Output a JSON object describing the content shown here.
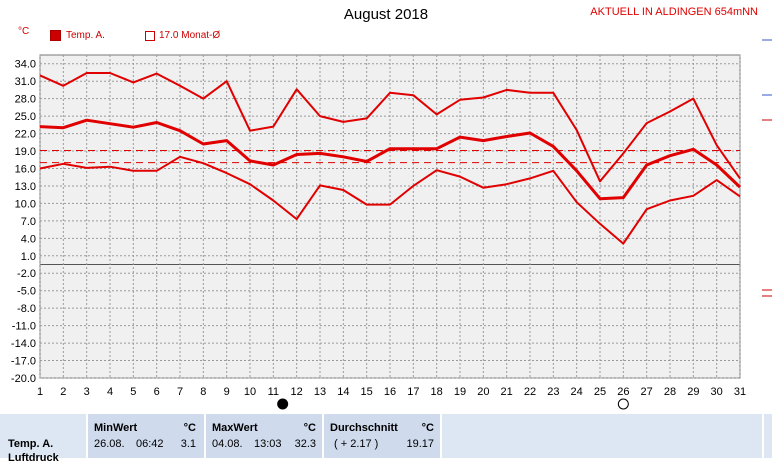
{
  "title": "August 2018",
  "subtitle": "AKTUELL IN ALDINGEN 654mNN",
  "unit_label": "°C",
  "legend": [
    {
      "label": "Temp. A.",
      "style": "filled"
    },
    {
      "label": "17.0 Monat-Ø",
      "style": "empty"
    }
  ],
  "colors": {
    "line": "#e00000",
    "grid": "#999999",
    "plot_bg": "#f0f0f0"
  },
  "moon_phase_markers": [
    {
      "day": 11.4,
      "phase": "new-moon"
    },
    {
      "day": 26.0,
      "phase": "full-moon"
    }
  ],
  "chart_data": {
    "type": "line",
    "title": "August 2018",
    "x": [
      1,
      2,
      3,
      4,
      5,
      6,
      7,
      8,
      9,
      10,
      11,
      12,
      13,
      14,
      15,
      16,
      17,
      18,
      19,
      20,
      21,
      22,
      23,
      24,
      25,
      26,
      27,
      28,
      29,
      30,
      31
    ],
    "xlim": [
      1,
      31
    ],
    "ylim": [
      -20,
      35.5
    ],
    "yticks": [
      34,
      31,
      28,
      25,
      22,
      19,
      16,
      13,
      10,
      7,
      4,
      1,
      -2,
      -5,
      -8,
      -11,
      -14,
      -17,
      -20
    ],
    "ytick_labels": [
      "34.0",
      "31.0",
      "28.0",
      "25.0",
      "22.0",
      "19.0",
      "16.0",
      "13.0",
      "10.0",
      "7.0",
      "4.0",
      "1.0",
      "-2.0",
      "-5.0",
      "-8.0",
      "-11.0",
      "-14.0",
      "-17.0",
      "-20.0"
    ],
    "grid": true,
    "series": [
      {
        "values": [
          32.0,
          30.2,
          32.4,
          32.4,
          30.8,
          32.3,
          30.2,
          28.0,
          31.0,
          22.5,
          23.2,
          29.6,
          25.0,
          24.0,
          24.6,
          29.0,
          28.6,
          25.3,
          27.8,
          28.2,
          29.5,
          29.0,
          29.0,
          22.6,
          13.8,
          18.6,
          23.8,
          25.8,
          28.0,
          20.0,
          14.3
        ]
      },
      {
        "values": [
          23.2,
          23.0,
          24.3,
          23.7,
          23.1,
          23.9,
          22.5,
          20.2,
          20.8,
          17.3,
          16.6,
          18.4,
          18.6,
          18.0,
          17.2,
          19.4,
          19.4,
          19.4,
          21.4,
          20.8,
          21.5,
          22.1,
          19.8,
          15.6,
          10.8,
          11.0,
          16.6,
          18.2,
          19.3,
          16.6,
          12.8
        ]
      },
      {
        "values": [
          16.0,
          16.8,
          16.1,
          16.3,
          15.6,
          15.6,
          18.0,
          16.9,
          15.2,
          13.3,
          10.5,
          7.3,
          13.1,
          12.3,
          9.8,
          9.8,
          13.0,
          15.7,
          14.6,
          12.7,
          13.3,
          14.3,
          15.6,
          10.2,
          6.5,
          3.1,
          9.0,
          10.5,
          11.3,
          14.0,
          11.2
        ]
      }
    ],
    "reference_lines": [
      {
        "y": 17.0,
        "style": "dashed"
      },
      {
        "y": 19.1,
        "style": "dashed"
      }
    ]
  },
  "stats_table": {
    "row_label": "Temp. A.",
    "next_row_label": "Luftdruck",
    "min": {
      "header": "MinWert",
      "unit": "°C",
      "date": "26.08.",
      "time": "06:42",
      "value": "3.1"
    },
    "max": {
      "header": "MaxWert",
      "unit": "°C",
      "date": "04.08.",
      "time": "13:03",
      "value": "32.3"
    },
    "avg": {
      "header": "Durchschnitt",
      "unit": "°C",
      "delta": "( + 2.17 )",
      "value": "19.17"
    }
  }
}
